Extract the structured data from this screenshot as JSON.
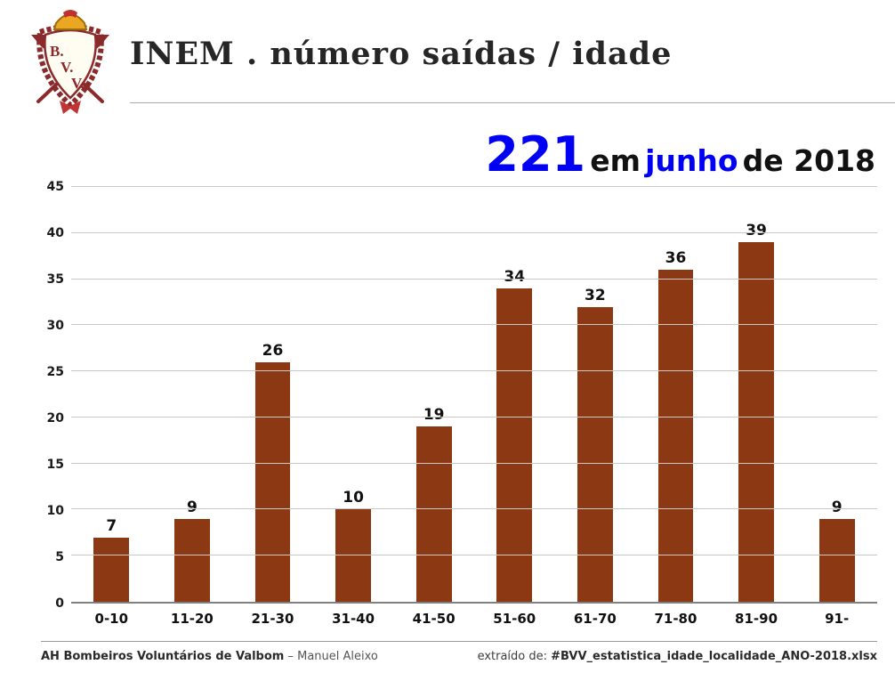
{
  "header": {
    "logo_icon": "bvv-crest-icon",
    "title": "INEM . número saídas / idade"
  },
  "subtitle": {
    "count": "221",
    "connector": "em",
    "month": "junho",
    "year_suffix": "de 2018"
  },
  "chart_data": {
    "type": "bar",
    "title": "INEM . número saídas / idade — 221 em junho de 2018",
    "categories": [
      "0-10",
      "11-20",
      "21-30",
      "31-40",
      "41-50",
      "51-60",
      "61-70",
      "71-80",
      "81-90",
      "91-"
    ],
    "values": [
      7,
      9,
      26,
      10,
      19,
      34,
      32,
      36,
      39,
      9
    ],
    "xlabel": "",
    "ylabel": "",
    "ylim": [
      0,
      45
    ],
    "ytick_step": 5,
    "grid": true,
    "legend": false,
    "bar_color": "#8c3812"
  },
  "footer": {
    "org_bold": "AH Bombeiros Voluntários de Valbom",
    "author": "– Manuel Aleixo",
    "source_label": "extraído de:",
    "source_file": "#BVV_estatistica_idade_localidade_ANO-2018.xlsx"
  },
  "colors": {
    "accent_blue": "#0000f5",
    "bar": "#8c3812",
    "gridline": "#c9c9c9"
  }
}
